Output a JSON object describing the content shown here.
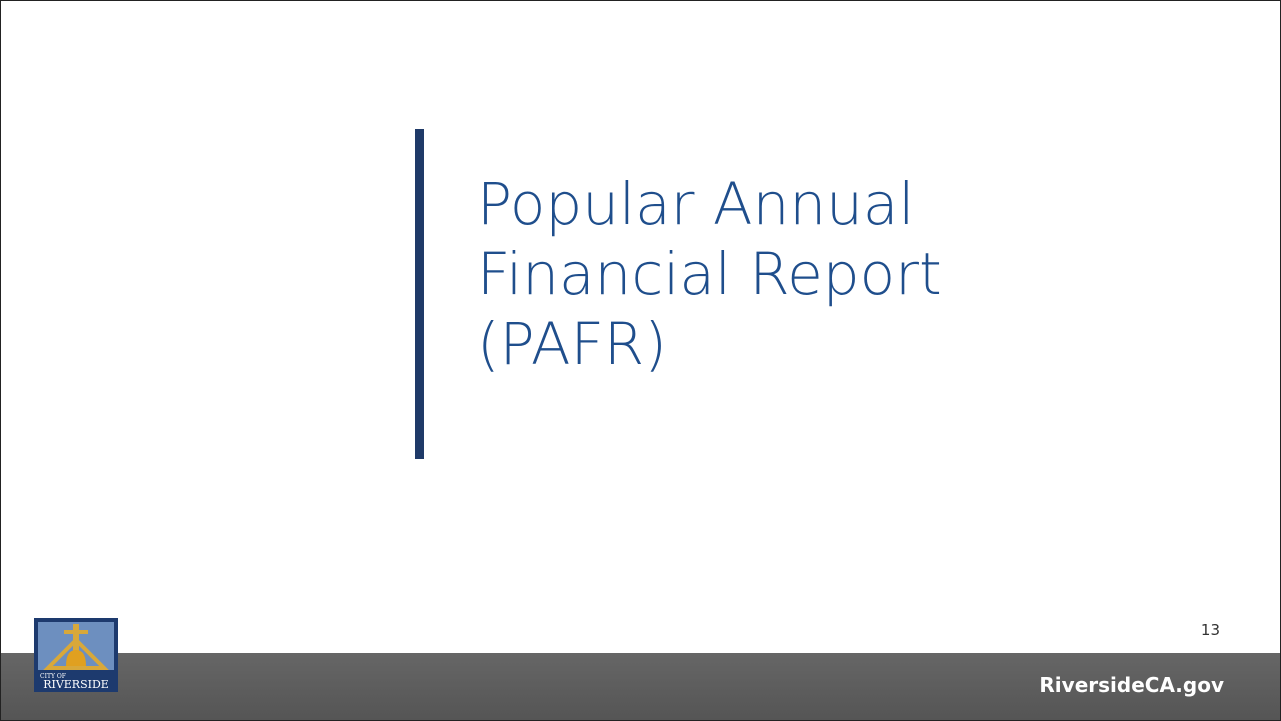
{
  "slide": {
    "title_lines": [
      "Popular Annual",
      "Financial Report",
      "(PAFR)"
    ],
    "page_number": "13",
    "footer_site": "RiversideCA.gov",
    "logo_small": "CITY OF",
    "logo_name": "RIVERSIDE"
  }
}
